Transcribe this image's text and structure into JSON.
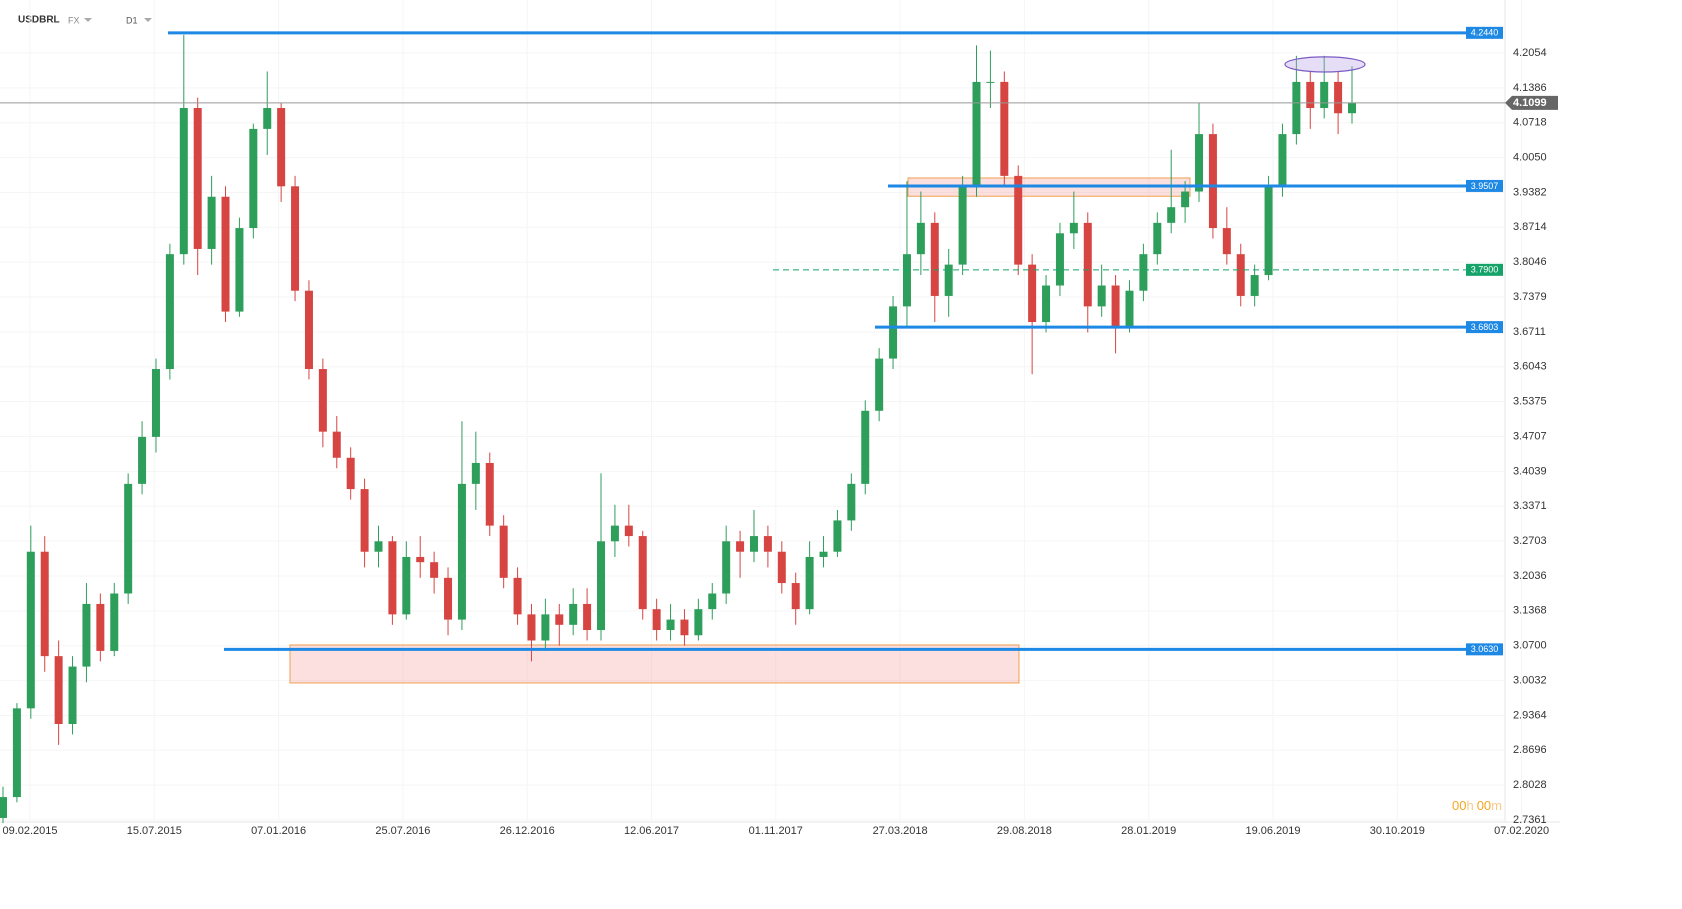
{
  "header": {
    "symbol": "USDBRL",
    "market": "FX",
    "interval": "D1"
  },
  "timer": [
    "00",
    "h",
    "00",
    "m"
  ],
  "chart_data": {
    "type": "candlestick",
    "up_color": "#2e9e5b",
    "down_color": "#d64541",
    "ylim": [
      2.7361,
      4.3069
    ],
    "yticks": [
      4.2054,
      4.1386,
      4.0718,
      {
        "value": 4.005,
        "label": "4.0050"
      },
      3.9382,
      3.8714,
      3.8046,
      3.7379,
      3.6711,
      3.6043,
      3.5375,
      3.4707,
      3.4039,
      3.3371,
      3.2703,
      3.2036,
      3.1368,
      {
        "value": 3.07,
        "label": "3.0700"
      },
      3.0032,
      2.9364,
      2.8696,
      2.8028,
      2.7361
    ],
    "xtick_labels": [
      "09.02.2015",
      "15.07.2015",
      "07.01.2016",
      "25.07.2016",
      "26.12.2016",
      "12.06.2017",
      "01.11.2017",
      "27.03.2018",
      "29.08.2018",
      "28.01.2019",
      "19.06.2019",
      "30.10.2019",
      "07.02.2020"
    ],
    "current_price": {
      "value": 4.1099,
      "label": "4.1099"
    },
    "levels": [
      {
        "value": 4.244,
        "label": "4.2440",
        "color": "#1e88e5",
        "style": "solid"
      },
      {
        "value": 3.9507,
        "label": "3.9507",
        "color": "#1e88e5",
        "style": "solid"
      },
      {
        "value": 3.79,
        "label": "3.7900",
        "color": "#16a36a",
        "style": "dashed"
      },
      {
        "value": 3.6803,
        "label": "3.6803",
        "color": "#1e88e5",
        "style": "solid"
      },
      {
        "value": 3.063,
        "label": "3.0630",
        "color": "#1e88e5",
        "style": "solid"
      }
    ],
    "zones": [
      {
        "top": 3.966,
        "bottom": 3.931
      },
      {
        "top": 3.0714,
        "bottom": 2.9986
      }
    ],
    "ellipse": {
      "top": 4.198,
      "bottom": 4.169
    },
    "open": [
      2.74,
      2.78,
      2.95,
      3.25,
      3.05,
      2.92,
      3.03,
      3.15,
      3.06,
      3.17,
      3.38,
      3.47,
      3.6,
      3.82,
      4.1,
      3.83,
      3.93,
      3.71,
      3.87,
      4.06,
      4.1,
      3.95,
      3.75,
      3.6,
      3.48,
      3.43,
      3.37,
      3.25,
      3.27,
      3.13,
      3.24,
      3.23,
      3.2,
      3.12,
      3.38,
      3.42,
      3.3,
      3.2,
      3.13,
      3.08,
      3.13,
      3.11,
      3.15,
      3.1,
      3.27,
      3.3,
      3.28,
      3.14,
      3.1,
      3.12,
      3.09,
      3.14,
      3.17,
      3.27,
      3.25,
      3.28,
      3.25,
      3.19,
      3.14,
      3.24,
      3.25,
      3.31,
      3.38,
      3.52,
      3.62,
      3.72,
      3.82,
      3.88,
      3.74,
      3.8,
      3.95,
      4.15,
      4.15,
      3.97,
      3.8,
      3.69,
      3.76,
      3.86,
      3.88,
      3.72,
      3.76,
      3.68,
      3.75,
      3.82,
      3.88,
      3.91,
      3.94,
      4.05,
      3.87,
      3.82,
      3.74,
      3.78,
      3.95,
      4.05,
      4.15,
      4.1,
      4.15,
      4.09
    ],
    "high": [
      2.8,
      2.96,
      3.3,
      3.28,
      3.08,
      3.05,
      3.19,
      3.17,
      3.19,
      3.4,
      3.5,
      3.62,
      3.84,
      4.24,
      4.12,
      3.97,
      3.95,
      3.89,
      4.07,
      4.17,
      4.11,
      3.97,
      3.77,
      3.62,
      3.51,
      3.45,
      3.39,
      3.3,
      3.28,
      3.27,
      3.28,
      3.25,
      3.22,
      3.5,
      3.48,
      3.44,
      3.32,
      3.22,
      3.15,
      3.16,
      3.15,
      3.18,
      3.18,
      3.4,
      3.34,
      3.34,
      3.29,
      3.16,
      3.15,
      3.14,
      3.16,
      3.19,
      3.3,
      3.29,
      3.33,
      3.3,
      3.27,
      3.21,
      3.27,
      3.28,
      3.33,
      3.4,
      3.54,
      3.64,
      3.74,
      3.96,
      3.94,
      3.9,
      3.83,
      3.97,
      4.22,
      4.21,
      4.17,
      3.99,
      3.82,
      3.78,
      3.88,
      3.94,
      3.9,
      3.8,
      3.78,
      3.77,
      3.84,
      3.9,
      4.02,
      3.96,
      4.11,
      4.07,
      3.91,
      3.84,
      3.8,
      3.97,
      4.07,
      4.2,
      4.17,
      4.2,
      4.17,
      4.18
    ],
    "low": [
      2.73,
      2.77,
      2.93,
      3.02,
      2.88,
      2.9,
      3.0,
      3.04,
      3.05,
      3.15,
      3.36,
      3.44,
      3.58,
      3.8,
      3.78,
      3.8,
      3.69,
      3.7,
      3.85,
      4.01,
      3.92,
      3.73,
      3.58,
      3.45,
      3.41,
      3.35,
      3.22,
      3.22,
      3.11,
      3.12,
      3.2,
      3.17,
      3.09,
      3.1,
      3.33,
      3.28,
      3.18,
      3.11,
      3.04,
      3.06,
      3.07,
      3.09,
      3.08,
      3.08,
      3.24,
      3.26,
      3.12,
      3.08,
      3.08,
      3.07,
      3.08,
      3.12,
      3.15,
      3.2,
      3.23,
      3.22,
      3.17,
      3.11,
      3.13,
      3.22,
      3.24,
      3.29,
      3.36,
      3.5,
      3.6,
      3.68,
      3.78,
      3.69,
      3.7,
      3.78,
      3.93,
      4.1,
      3.95,
      3.78,
      3.59,
      3.67,
      3.74,
      3.83,
      3.67,
      3.7,
      3.63,
      3.67,
      3.73,
      3.8,
      3.86,
      3.88,
      3.92,
      3.85,
      3.8,
      3.72,
      3.72,
      3.77,
      3.93,
      4.03,
      4.06,
      4.08,
      4.05,
      4.07
    ],
    "close": [
      2.78,
      2.95,
      3.25,
      3.05,
      2.92,
      3.03,
      3.15,
      3.06,
      3.17,
      3.38,
      3.47,
      3.6,
      3.82,
      4.1,
      3.83,
      3.93,
      3.71,
      3.87,
      4.06,
      4.1,
      3.95,
      3.75,
      3.6,
      3.48,
      3.43,
      3.37,
      3.25,
      3.27,
      3.13,
      3.24,
      3.23,
      3.2,
      3.12,
      3.38,
      3.42,
      3.3,
      3.2,
      3.13,
      3.08,
      3.13,
      3.11,
      3.15,
      3.1,
      3.27,
      3.3,
      3.28,
      3.14,
      3.1,
      3.12,
      3.09,
      3.14,
      3.17,
      3.27,
      3.25,
      3.28,
      3.25,
      3.19,
      3.14,
      3.24,
      3.25,
      3.31,
      3.38,
      3.52,
      3.62,
      3.72,
      3.82,
      3.88,
      3.74,
      3.8,
      3.95,
      4.15,
      4.15,
      3.97,
      3.8,
      3.69,
      3.76,
      3.86,
      3.88,
      3.72,
      3.76,
      3.68,
      3.75,
      3.82,
      3.88,
      3.91,
      3.94,
      4.05,
      3.87,
      3.82,
      3.74,
      3.78,
      3.95,
      4.05,
      4.15,
      4.1,
      4.15,
      4.09,
      4.11
    ]
  }
}
